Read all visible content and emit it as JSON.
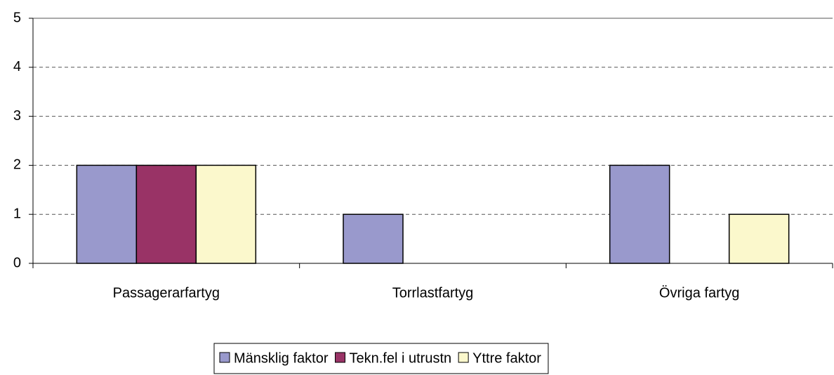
{
  "chart_data": {
    "type": "bar",
    "categories": [
      "Passagerarfartyg",
      "Torrlastfartyg",
      "Övriga fartyg"
    ],
    "series": [
      {
        "name": "Mänsklig faktor",
        "color": "#9999cc",
        "values": [
          2,
          1,
          2
        ]
      },
      {
        "name": "Tekn.fel i utrustn",
        "color": "#993366",
        "values": [
          2,
          0,
          0
        ]
      },
      {
        "name": "Yttre faktor",
        "color": "#fbf8cc",
        "values": [
          2,
          0,
          1
        ]
      }
    ],
    "ylim": [
      0,
      5
    ],
    "yticks": [
      0,
      1,
      2,
      3,
      4,
      5
    ],
    "grid": true,
    "legend": "bottom"
  }
}
